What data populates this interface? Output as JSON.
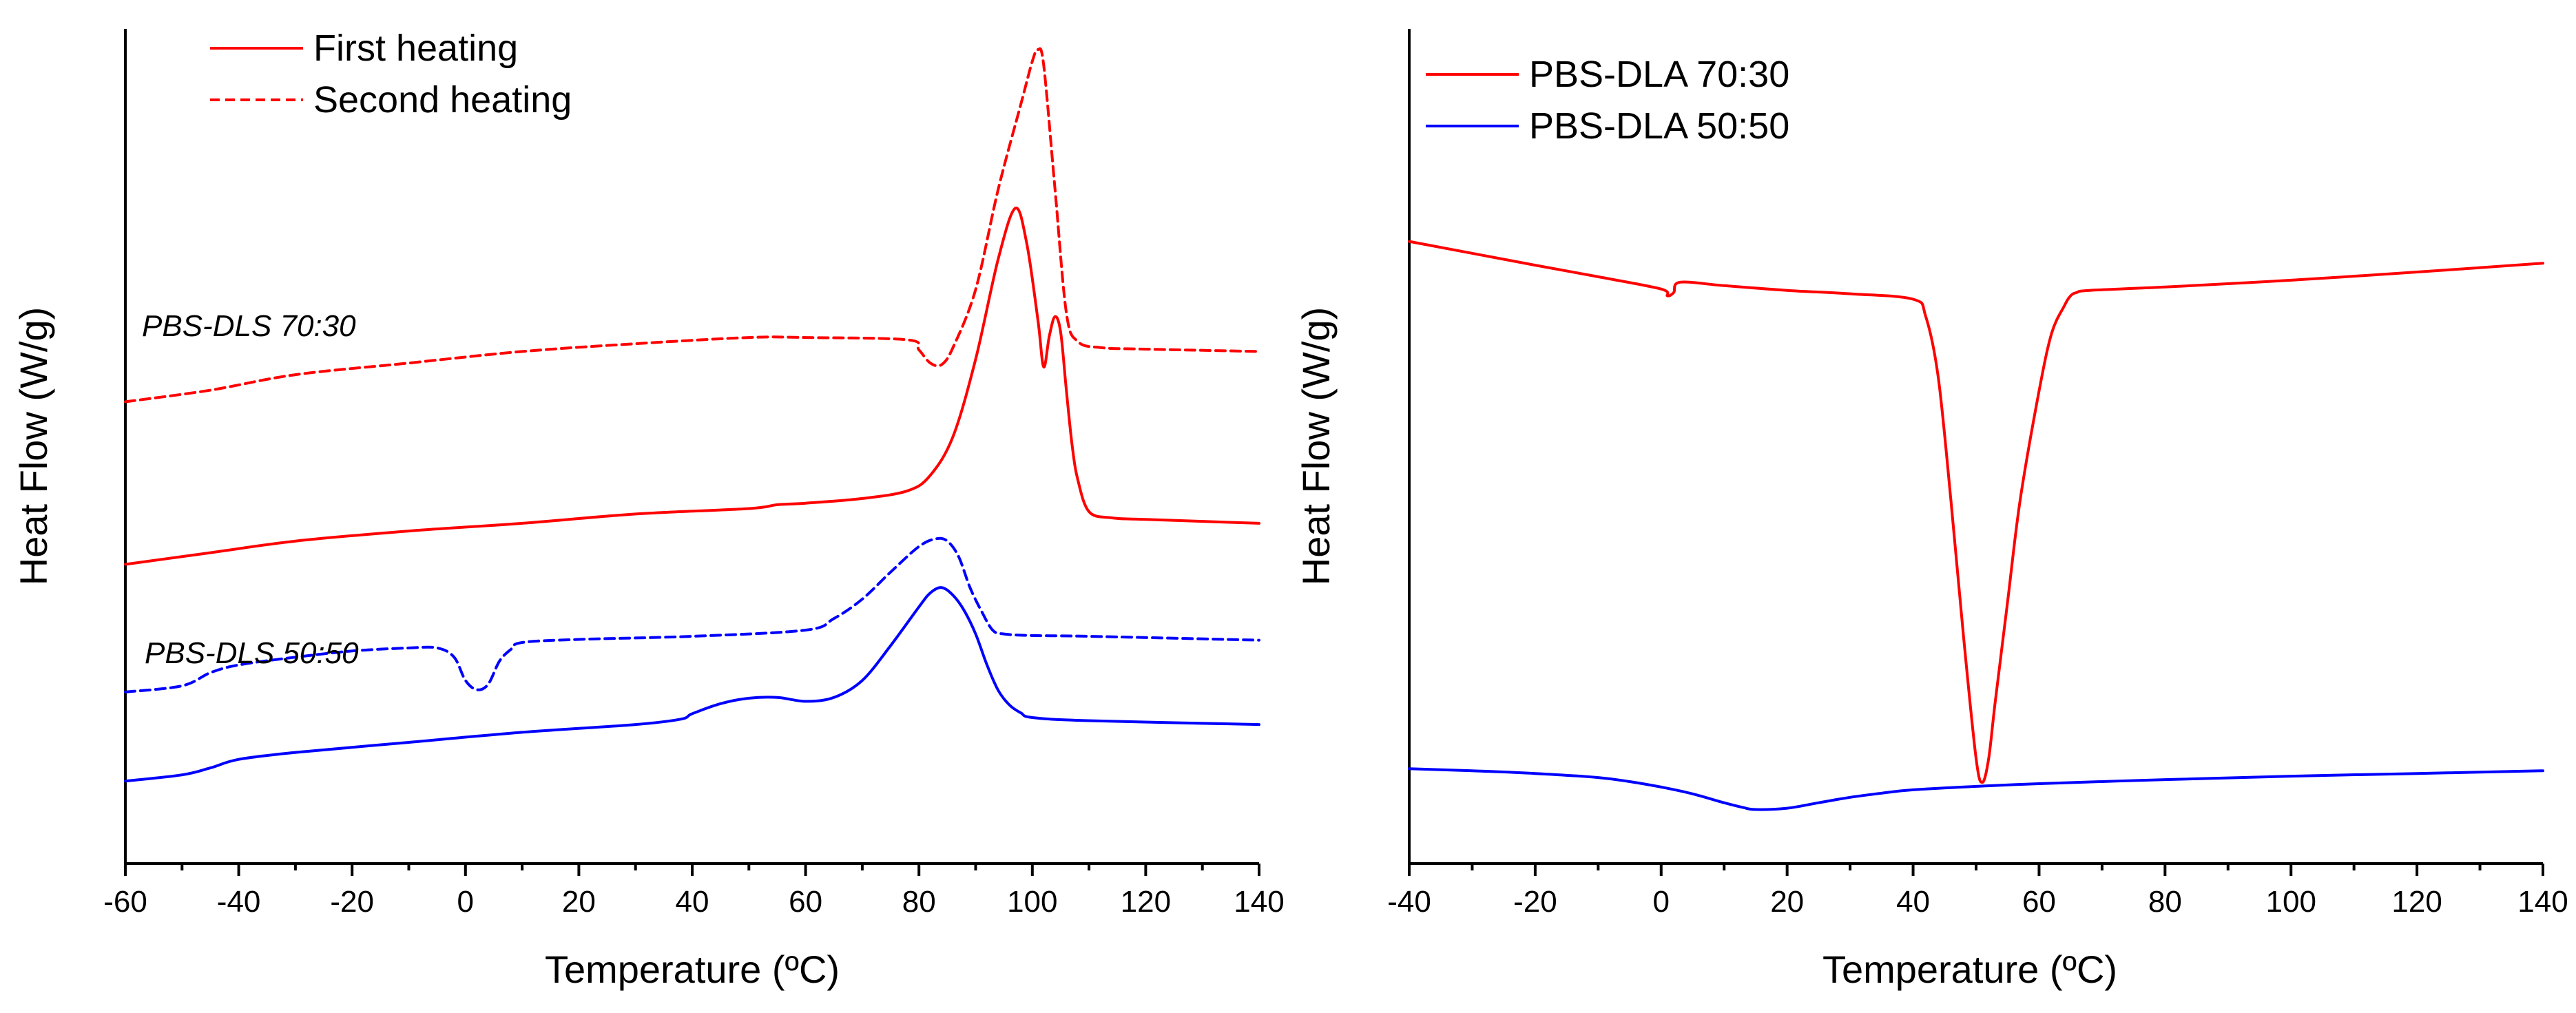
{
  "chart_data": [
    {
      "type": "line",
      "title": "",
      "xlabel": "Temperature (ºC)",
      "ylabel": "Heat Flow (W/g)",
      "xlim": [
        -60,
        140
      ],
      "ylim": [
        0,
        100
      ],
      "xticks": [
        -60,
        -40,
        -20,
        0,
        20,
        40,
        60,
        80,
        100,
        120,
        140
      ],
      "xtick_labels": [
        "-60",
        "-40",
        "-20",
        "0",
        "20",
        "40",
        "60",
        "80",
        "100",
        "120",
        "140"
      ],
      "legend": {
        "placement": "top-left",
        "entries": [
          "First heating",
          "Second heating"
        ]
      },
      "annotations": [
        {
          "text": "PBS-DLS 70:30",
          "x": -57,
          "y": 67
        },
        {
          "text": "PBS-DLS 50:50",
          "x": -57,
          "y": 26
        }
      ],
      "series": [
        {
          "name": "PBS-DLS 70:30 second heating",
          "color": "#ff0000",
          "dash": "dashed",
          "x": [
            -60,
            -45,
            -30,
            -10,
            10,
            30,
            50,
            60,
            78,
            80,
            82,
            84,
            86,
            90,
            94,
            98,
            100,
            101,
            102,
            104,
            106,
            108,
            112,
            120,
            140
          ],
          "y": [
            54.5,
            56,
            58,
            59.5,
            61,
            62,
            62.8,
            62.8,
            62.5,
            61.2,
            59.5,
            59.3,
            61.5,
            69,
            82,
            93,
            98.5,
            100,
            98,
            82,
            66,
            62.3,
            61.5,
            61.3,
            61
          ]
        },
        {
          "name": "PBS-DLS 70:30 first heating",
          "color": "#ff0000",
          "dash": "solid",
          "x": [
            -60,
            -45,
            -30,
            -10,
            10,
            30,
            50,
            55,
            60,
            70,
            78,
            82,
            86,
            90,
            94,
            97,
            99,
            101,
            102,
            103,
            104,
            105,
            106,
            107,
            108,
            110,
            114,
            120,
            140
          ],
          "y": [
            33.5,
            35,
            36.5,
            37.8,
            38.8,
            40,
            40.7,
            41.2,
            41.4,
            42,
            43,
            45,
            50,
            60,
            73,
            79.5,
            75,
            65,
            59,
            63,
            65.5,
            63.5,
            56,
            49,
            44.5,
            40.3,
            39.5,
            39.3,
            38.8
          ]
        },
        {
          "name": "PBS-DLS 50:50 second heating",
          "color": "#0000ff",
          "dash": "dashed",
          "x": [
            -60,
            -50,
            -45,
            -40,
            -30,
            -20,
            -10,
            -5,
            -2,
            0,
            2,
            4,
            6,
            8,
            10,
            20,
            40,
            60,
            65,
            70,
            75,
            80,
            83,
            85,
            87,
            89,
            91,
            93,
            95,
            100,
            110,
            140
          ],
          "y": [
            17,
            17.8,
            19.5,
            20.5,
            21.5,
            22.3,
            22.7,
            22.7,
            21.5,
            18.5,
            17.3,
            18,
            21,
            22.5,
            23.4,
            23.8,
            24.2,
            25,
            26.5,
            29,
            32.5,
            35.8,
            36.8,
            36.5,
            34.5,
            30.5,
            27.5,
            25,
            24.5,
            24.3,
            24.2,
            23.7
          ]
        },
        {
          "name": "PBS-DLS 50:50 first heating",
          "color": "#0000ff",
          "dash": "solid",
          "x": [
            -60,
            -50,
            -45,
            -40,
            -30,
            -10,
            10,
            30,
            38,
            40,
            45,
            50,
            55,
            60,
            65,
            70,
            75,
            80,
            82,
            84,
            86,
            88,
            90,
            92,
            94,
            96,
            98,
            100,
            110,
            140
          ],
          "y": [
            5.5,
            6.3,
            7.2,
            8.3,
            9.2,
            10.5,
            11.8,
            12.8,
            13.5,
            14.2,
            15.5,
            16.2,
            16.3,
            15.8,
            16.3,
            18.5,
            23,
            28,
            29.8,
            30.5,
            29.5,
            27.5,
            24.5,
            20.5,
            17.2,
            15.3,
            14.3,
            13.7,
            13.3,
            12.8
          ]
        }
      ]
    },
    {
      "type": "line",
      "title": "",
      "xlabel": "Temperature (ºC)",
      "ylabel": "Heat Flow (W/g)",
      "xlim": [
        -40,
        140
      ],
      "ylim": [
        0,
        100
      ],
      "xticks": [
        -40,
        -20,
        0,
        20,
        40,
        60,
        80,
        100,
        120,
        140
      ],
      "xtick_labels": [
        "-40",
        "-20",
        "0",
        "20",
        "40",
        "60",
        "80",
        "100",
        "120",
        "140"
      ],
      "legend": {
        "placement": "top-left",
        "entries": [
          "PBS-DLA 70:30",
          "PBS-DLA 50:50"
        ]
      },
      "annotations": [],
      "series": [
        {
          "name": "PBS-DLA 70:30",
          "color": "#ff0000",
          "dash": "solid",
          "x": [
            -40,
            -20,
            -10,
            0,
            1,
            2,
            3,
            10,
            20,
            30,
            40,
            42,
            44,
            46,
            48,
            50,
            51,
            52,
            53,
            55,
            57,
            60,
            62,
            64,
            65,
            66,
            68,
            80,
            100,
            120,
            140
          ],
          "y": [
            88,
            84.5,
            82.8,
            81,
            80,
            80.5,
            82,
            81.5,
            80.8,
            80.3,
            79.5,
            77,
            68,
            50,
            30,
            12,
            8.5,
            12,
            20,
            35,
            50,
            66,
            74.5,
            78.5,
            80,
            80.5,
            80.8,
            81.3,
            82.3,
            83.5,
            84.8
          ]
        },
        {
          "name": "PBS-DLA 50:50",
          "color": "#0000ff",
          "dash": "solid",
          "x": [
            -40,
            -30,
            -20,
            -10,
            -5,
            0,
            5,
            10,
            13,
            15,
            20,
            25,
            30,
            35,
            40,
            50,
            60,
            80,
            100,
            120,
            140
          ],
          "y": [
            10.5,
            10.2,
            9.8,
            9.2,
            8.6,
            7.8,
            6.8,
            5.5,
            4.8,
            4.5,
            4.7,
            5.5,
            6.3,
            6.9,
            7.4,
            7.9,
            8.3,
            8.9,
            9.4,
            9.8,
            10.2
          ]
        }
      ]
    }
  ]
}
